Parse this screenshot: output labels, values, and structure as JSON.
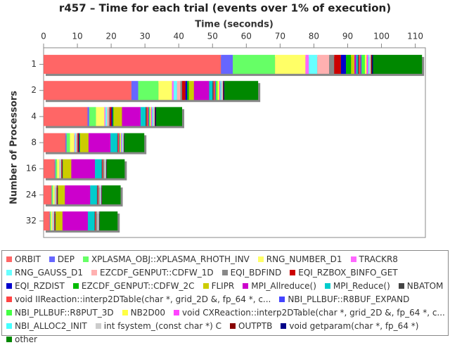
{
  "chart_data": {
    "type": "stacked-barh",
    "title": "r457 – Time for each trial (events over 1% of execution)",
    "x_label": "Time (seconds)",
    "y_label": "Number of Processors",
    "categories": [
      "1",
      "2",
      "4",
      "8",
      "16",
      "24",
      "32"
    ],
    "xlim": [
      0,
      113
    ],
    "xticks": [
      0,
      10,
      20,
      30,
      40,
      50,
      60,
      70,
      80,
      90,
      100,
      110
    ],
    "series": [
      {
        "name": "ORBIT",
        "color": "#ff6666",
        "values": [
          52.5,
          26,
          13,
          6.5,
          3.3,
          2.3,
          1.8
        ]
      },
      {
        "name": "DEP",
        "color": "#6666ff",
        "values": [
          3.5,
          2,
          0.5,
          0.3,
          0.2,
          0.1,
          0.1
        ]
      },
      {
        "name": "XPLASMA_OBJ::XPLASMA_RHOTH_INV",
        "color": "#66ff66",
        "values": [
          12.5,
          6,
          2,
          1,
          0.5,
          0.4,
          0.3
        ]
      },
      {
        "name": "RNG_NUMBER_D1",
        "color": "#ffff66",
        "values": [
          9,
          4,
          2.5,
          1.3,
          0.7,
          0.5,
          0.4
        ]
      },
      {
        "name": "TRACKR8",
        "color": "#ff66ff",
        "values": [
          1,
          0.5,
          0.3,
          0.2,
          0.1,
          0.1,
          0.1
        ]
      },
      {
        "name": "RNG_GAUSS_D1",
        "color": "#66ffff",
        "values": [
          2.5,
          1,
          0.5,
          0.3,
          0.2,
          0.2,
          0.2
        ]
      },
      {
        "name": "EZCDF_GENPUT::CDFW_1D",
        "color": "#ffb0b0",
        "values": [
          3.5,
          1,
          0.5,
          0.3,
          0.2,
          0.2,
          0.2
        ]
      },
      {
        "name": "EQI_BDFIND",
        "color": "#888888",
        "values": [
          1.5,
          0.5,
          0.3,
          0.2,
          0.1,
          0.1,
          0.1
        ]
      },
      {
        "name": "EQI_RZBOX_BINFO_GET",
        "color": "#cc0000",
        "values": [
          2,
          1,
          0.5,
          0.3,
          0.2,
          0.2,
          0.2
        ]
      },
      {
        "name": "EQI_RZDIST",
        "color": "#0000cc",
        "values": [
          1.5,
          0.5,
          0.3,
          0.2,
          0.1,
          0.1,
          0.1
        ]
      },
      {
        "name": "EZCDF_GENPUT::CDFW_2C",
        "color": "#00bb00",
        "values": [
          1.5,
          0.5,
          0.3,
          0.2,
          0.1,
          0.1,
          0.1
        ]
      },
      {
        "name": "FLIPR",
        "color": "#cccc00",
        "values": [
          1,
          1.5,
          2.5,
          2.5,
          2.5,
          2,
          2
        ]
      },
      {
        "name": "MPI_Allreduce()",
        "color": "#cc00cc",
        "values": [
          0.5,
          4.5,
          5.5,
          6.5,
          7,
          7.5,
          7.5
        ]
      },
      {
        "name": "MPI_Reduce()",
        "color": "#00cccc",
        "values": [
          0.5,
          1,
          1.5,
          2,
          2,
          2,
          2
        ]
      },
      {
        "name": "NBATOM",
        "color": "#444444",
        "values": [
          0.3,
          0.3,
          0.3,
          0.2,
          0.2,
          0.2,
          0.2
        ]
      },
      {
        "name": "void IIReaction::interp2DTable(char *, grid_2D &, fp_64 *, c...",
        "color": "#ff4444",
        "values": [
          0.5,
          0.5,
          0.5,
          0.4,
          0.3,
          0.3,
          0.3
        ]
      },
      {
        "name": "NBI_PLLBUF::R8BUF_EXPAND",
        "color": "#4444ff",
        "values": [
          0.3,
          0.2,
          0.2,
          0.1,
          0.1,
          0.1,
          0.1
        ]
      },
      {
        "name": "NBI_PLLBUF::R8PUT_3D",
        "color": "#44ff44",
        "values": [
          1,
          0.5,
          0.3,
          0.2,
          0.1,
          0.1,
          0.1
        ]
      },
      {
        "name": "NB2D00",
        "color": "#ffff44",
        "values": [
          0.5,
          0.5,
          0.3,
          0.2,
          0.1,
          0.1,
          0.1
        ]
      },
      {
        "name": "void CXReaction::interp2DTable(char *, grid_2D &, fp_64 *, c...",
        "color": "#ff44ff",
        "values": [
          0.5,
          0.3,
          0.3,
          0.2,
          0.1,
          0.1,
          0.1
        ]
      },
      {
        "name": "NBI_ALLOC2_INIT",
        "color": "#44ffff",
        "values": [
          0.3,
          0.3,
          0.3,
          0.2,
          0.1,
          0.1,
          0.1
        ]
      },
      {
        "name": "int fsystem_(const char *) C",
        "color": "#cccccc",
        "values": [
          0.5,
          0.5,
          0.5,
          0.4,
          0.3,
          0.3,
          0.3
        ]
      },
      {
        "name": "OUTPTB",
        "color": "#880000",
        "values": [
          0.3,
          0.2,
          0.2,
          0.1,
          0.1,
          0.1,
          0.1
        ]
      },
      {
        "name": "void getparam(char *, fp_64 *)",
        "color": "#000088",
        "values": [
          0.3,
          0.2,
          0.2,
          0.1,
          0.1,
          0.1,
          0.1
        ]
      },
      {
        "name": "other",
        "color": "#008800",
        "values": [
          14.5,
          10,
          7.7,
          5.9,
          5.3,
          5.5,
          5.3
        ]
      }
    ]
  }
}
